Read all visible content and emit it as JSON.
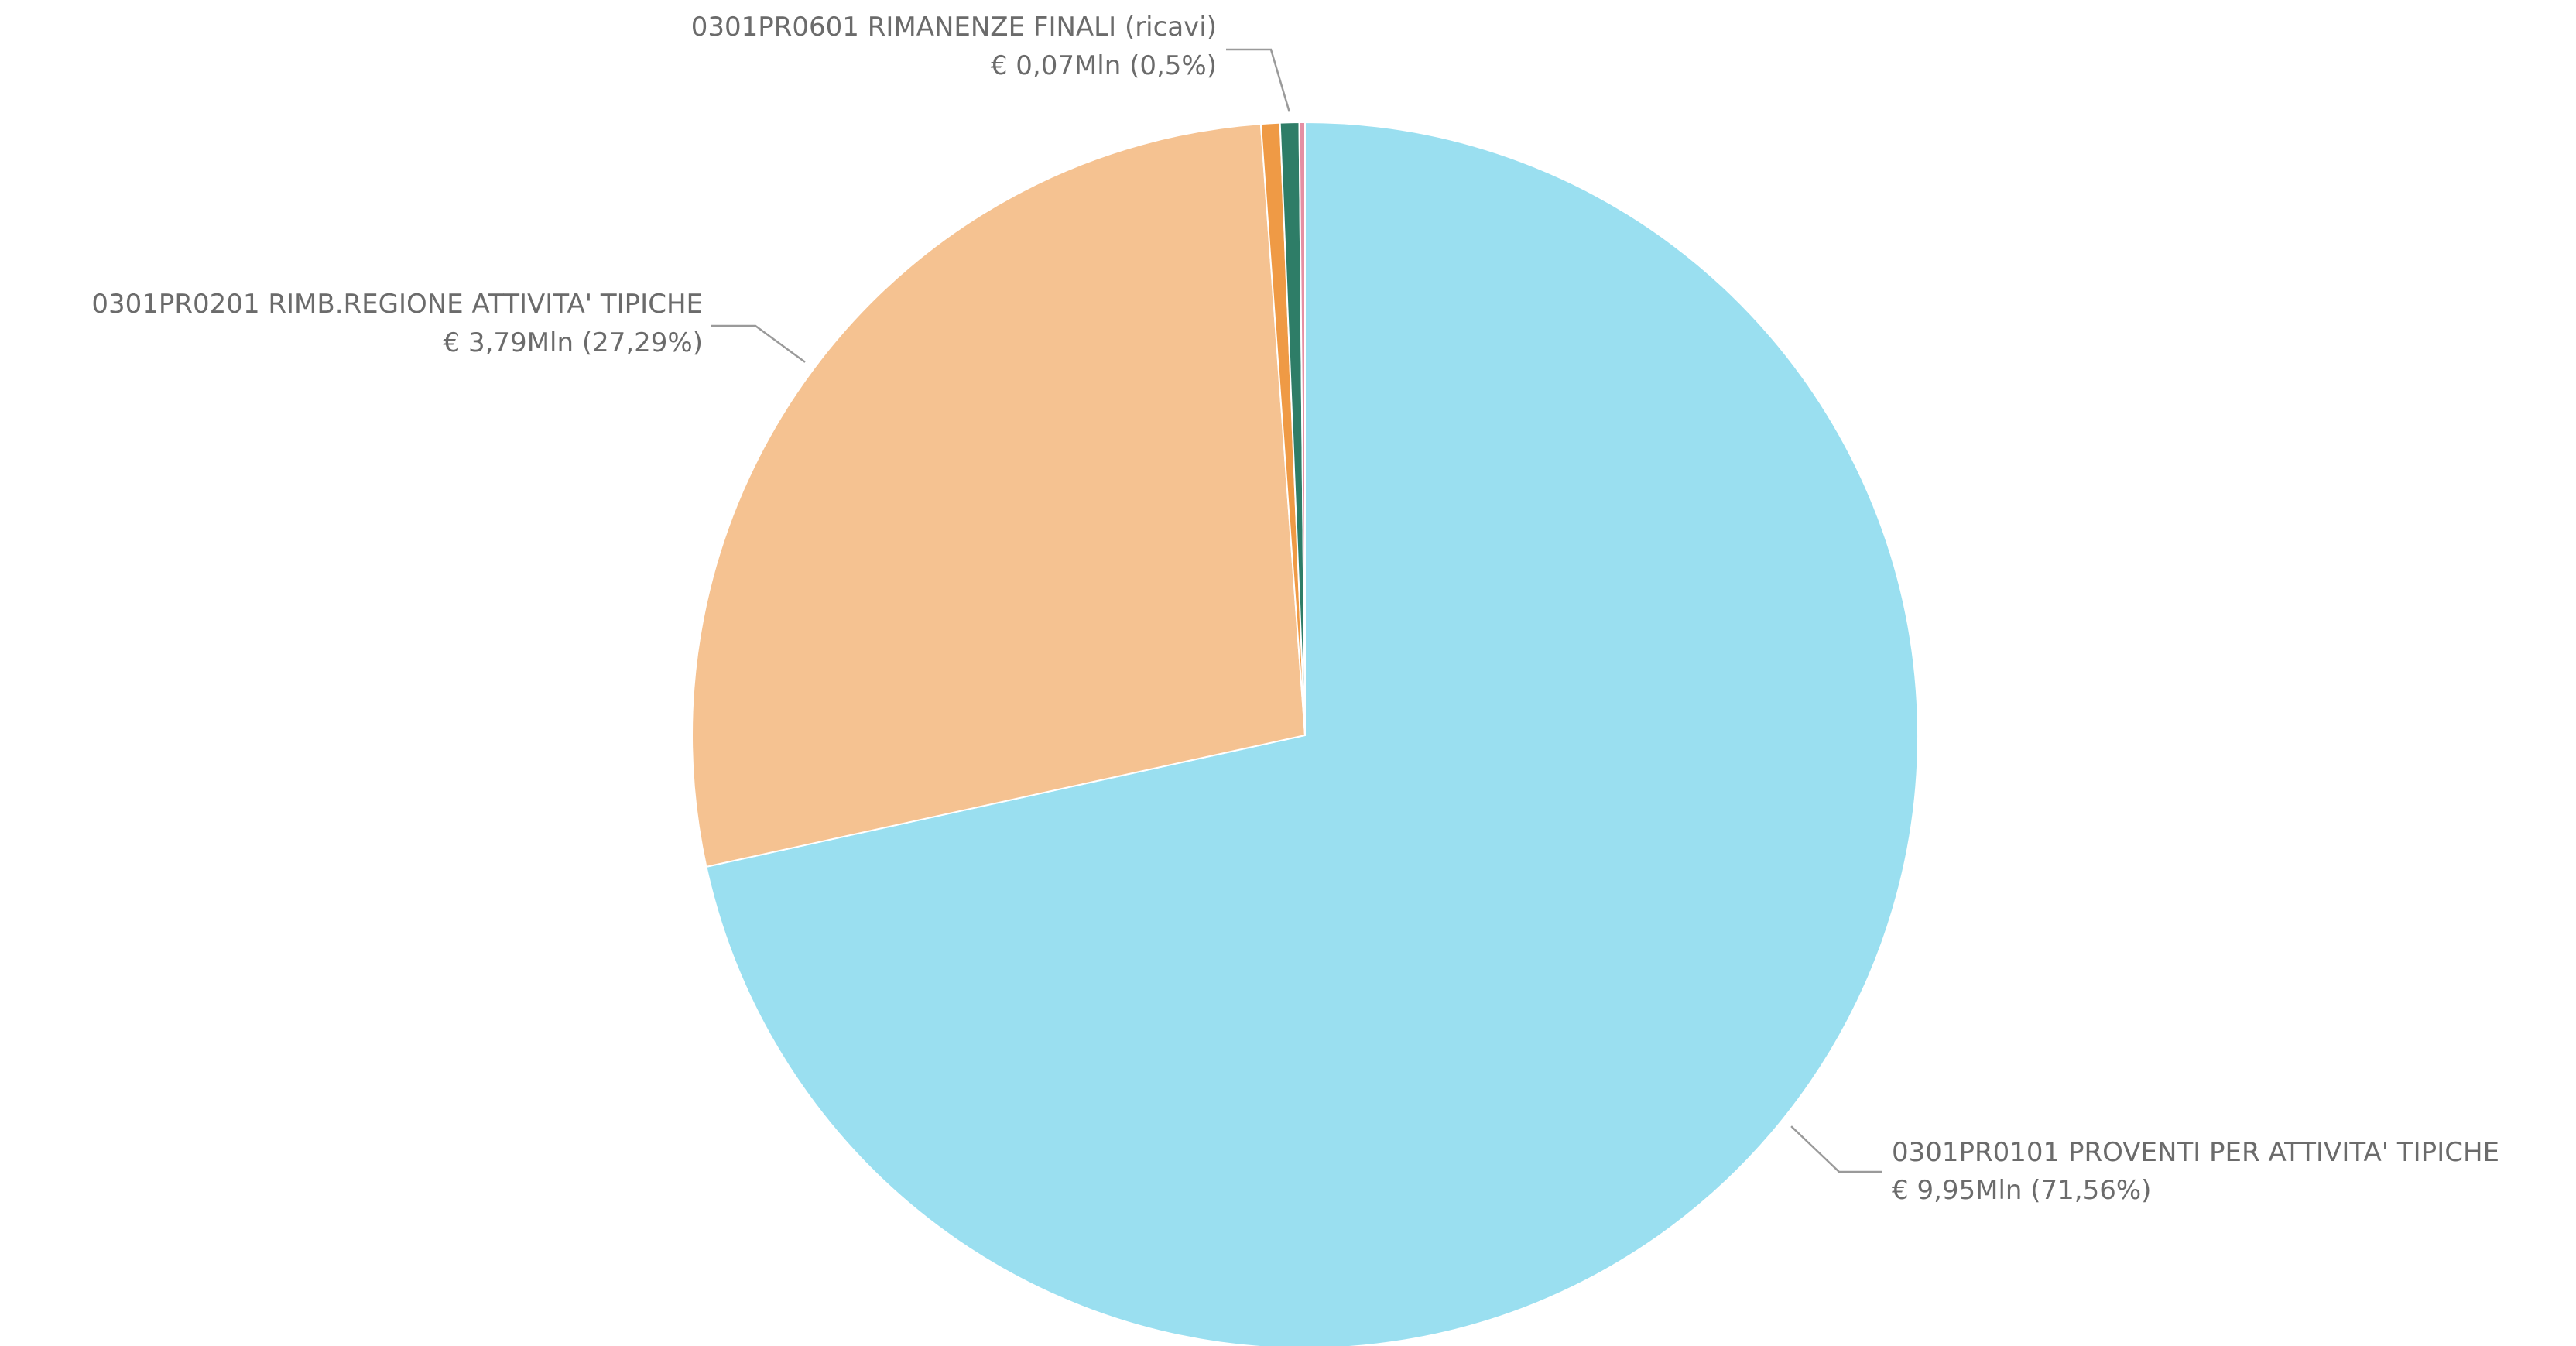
{
  "chart_data": {
    "type": "pie",
    "title": "",
    "slices": [
      {
        "name": "0301PR0101 PROVENTI PER ATTIVITA' TIPICHE",
        "value_label": "€ 9,95Mln (71,56%)",
        "value_mln": 9.95,
        "percent": 71.56,
        "color": "#9ADFF0"
      },
      {
        "name": "0301PR0201 RIMB.REGIONE ATTIVITA' TIPICHE",
        "value_label": "€ 3,79Mln (27,29%)",
        "value_mln": 3.79,
        "percent": 27.29,
        "color": "#F5C291"
      },
      {
        "name": "",
        "value_label": "",
        "value_mln": null,
        "percent": 0.5,
        "color": "#EF9A45"
      },
      {
        "name": "0301PR0601 RIMANENZE FINALI (ricavi)",
        "value_label": "€ 0,07Mln (0,5%)",
        "value_mln": 0.07,
        "percent": 0.5,
        "color": "#2E7D67"
      },
      {
        "name": "",
        "value_label": "",
        "value_mln": null,
        "percent": 0.15,
        "color": "#E58FA3"
      }
    ],
    "legend": "none",
    "start": "12 o'clock",
    "direction": "clockwise",
    "separator_color": "#ffffff"
  }
}
